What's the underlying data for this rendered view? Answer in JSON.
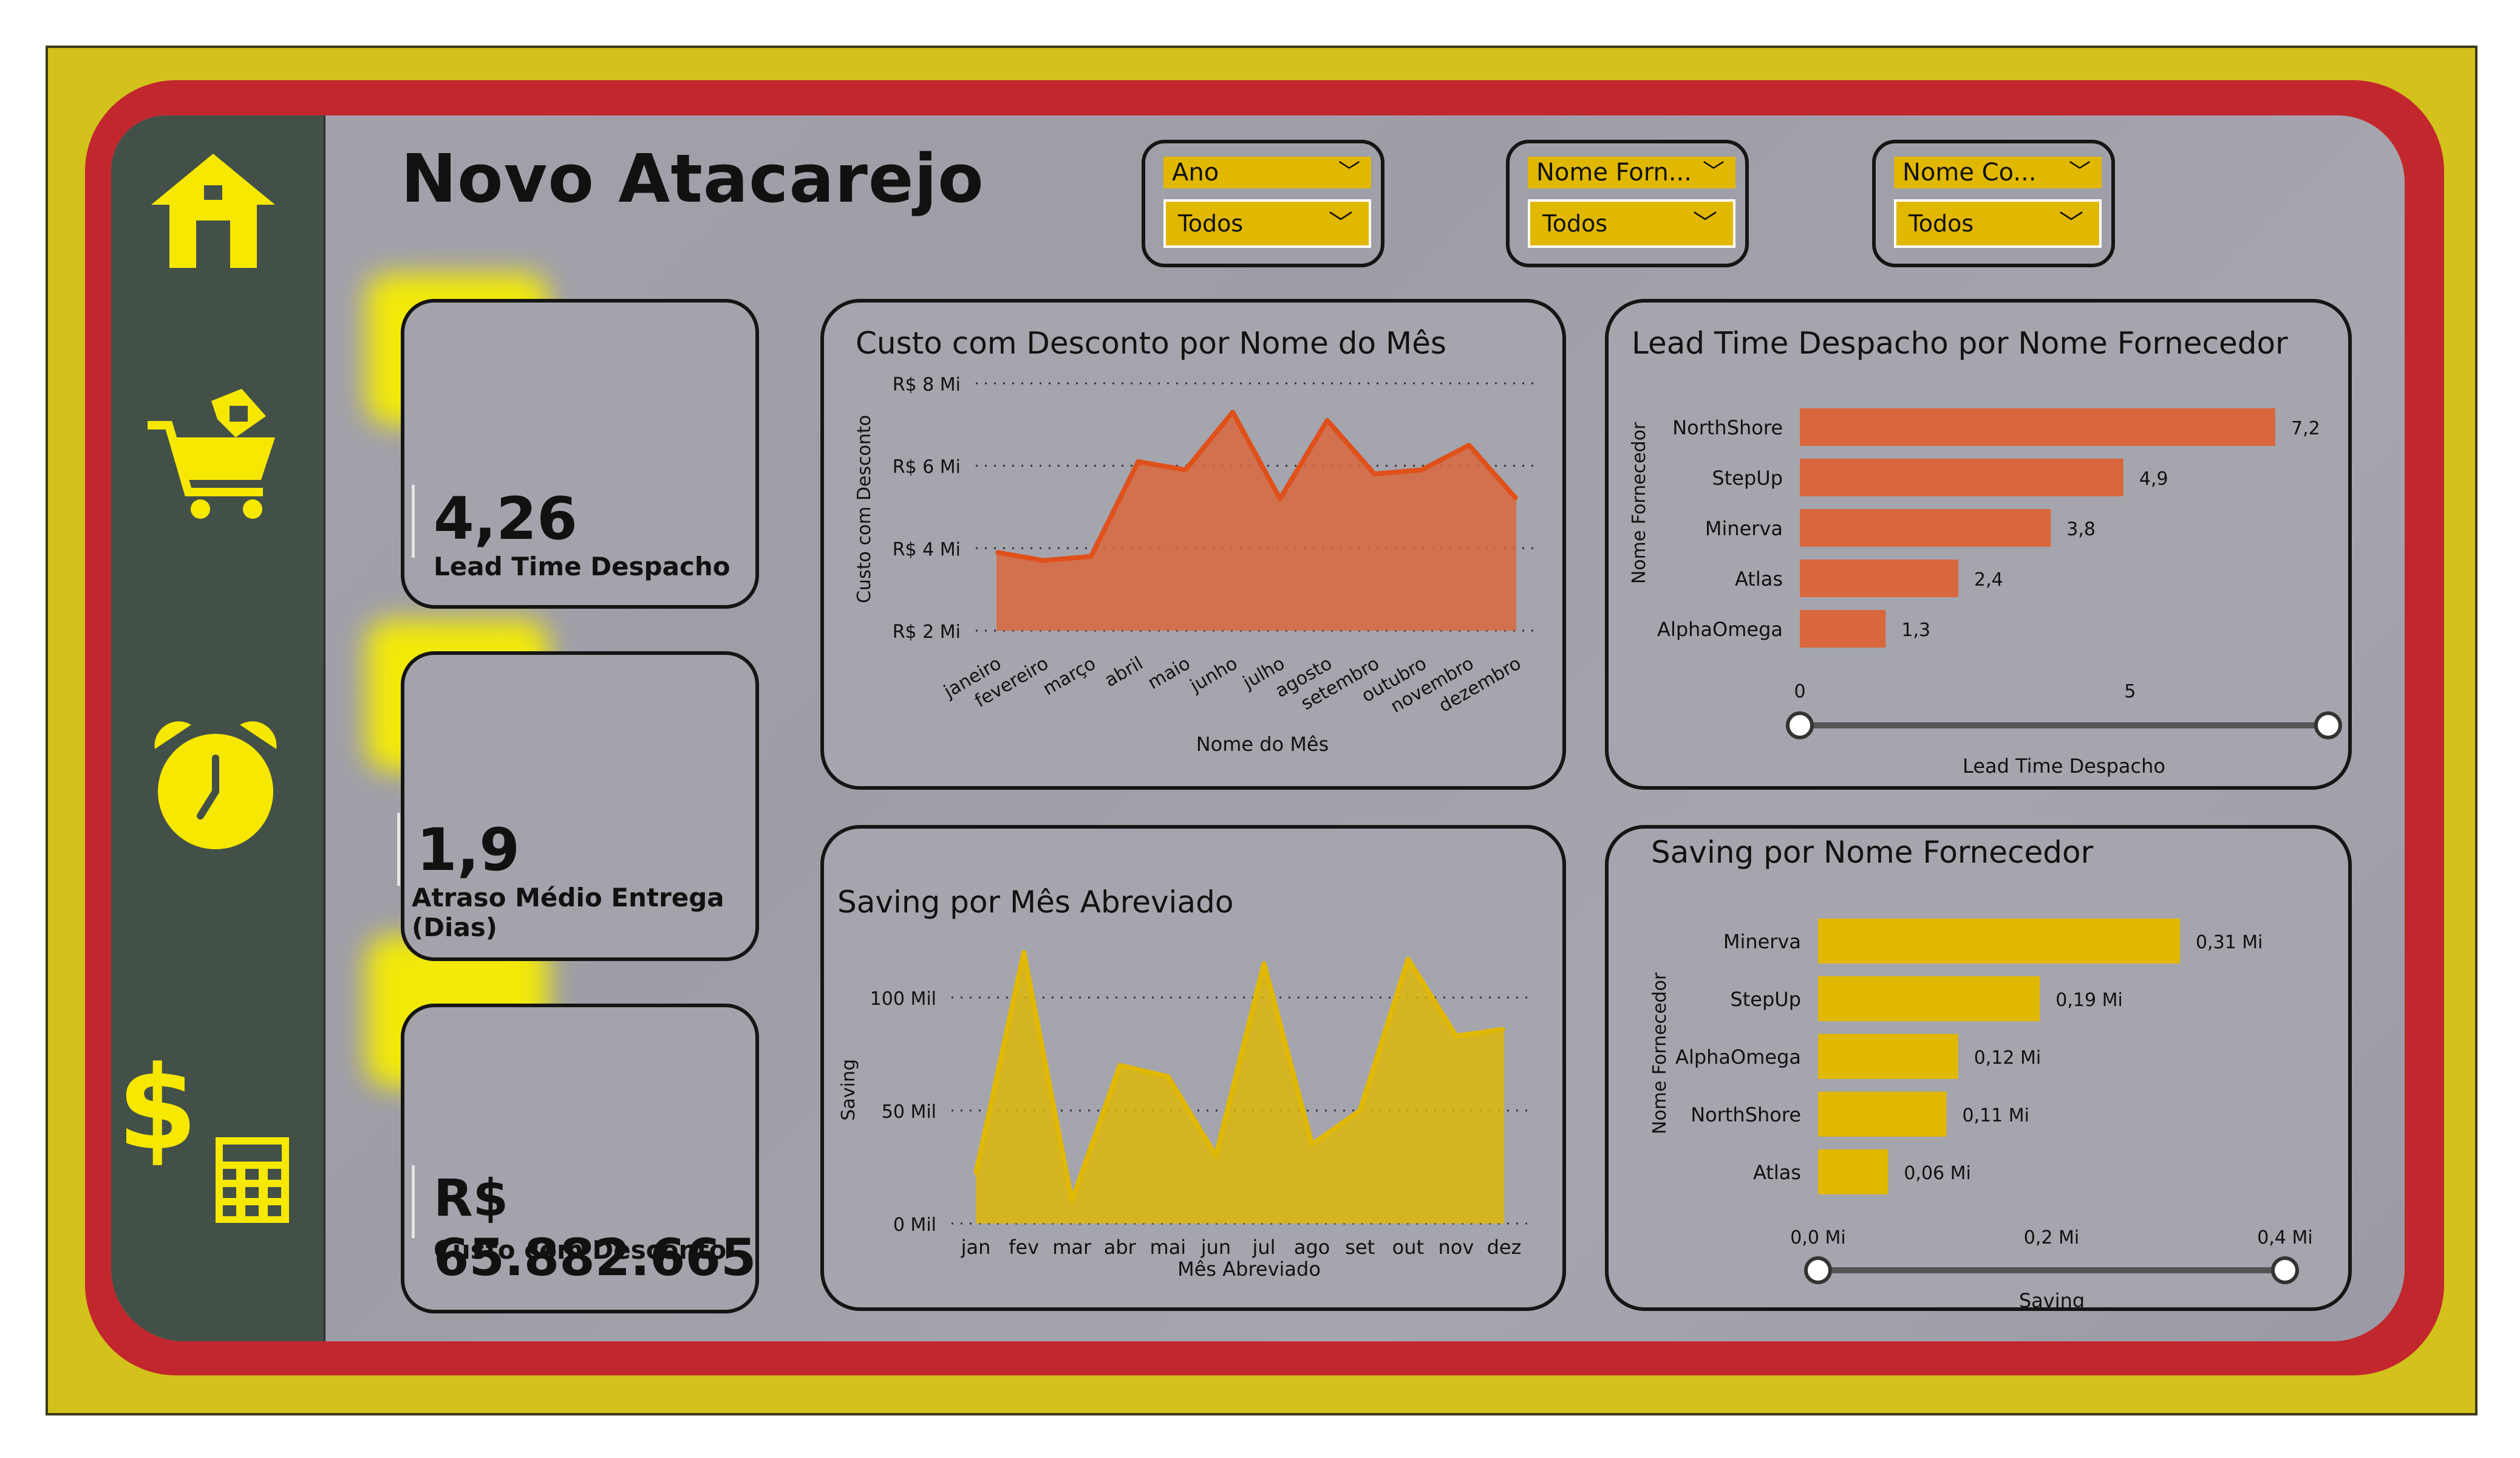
{
  "title": "Novo Atacarejo",
  "sidebar": {
    "items": [
      {
        "icon": "home-icon"
      },
      {
        "icon": "shopping-cart-icon"
      },
      {
        "icon": "alarm-clock-icon"
      },
      {
        "icon": "dollar-calculator-icon"
      }
    ]
  },
  "slicers": [
    {
      "header": "Ano",
      "value": "Todos"
    },
    {
      "header": "Nome Forn...",
      "value": "Todos"
    },
    {
      "header": "Nome Co...",
      "value": "Todos"
    }
  ],
  "kpis": [
    {
      "value": "4,26",
      "label": "Lead Time Despacho"
    },
    {
      "value": "1,9",
      "label": "Atraso Médio Entrega (Dias)"
    },
    {
      "value": "R$ 65.882.665",
      "label": "Custo com Desconto"
    }
  ],
  "colors": {
    "accent_yellow": "#e1b800",
    "orange": "#d9673e",
    "frame_red": "#c2272d",
    "frame_yellow": "#d2c21b",
    "sidebar": "#435048"
  },
  "chart_data": [
    {
      "type": "area",
      "title": "Custo com Desconto por Nome do Mês",
      "xlabel": "Nome do Mês",
      "ylabel": "Custo com Desconto",
      "categories": [
        "janeiro",
        "fevereiro",
        "março",
        "abril",
        "maio",
        "junho",
        "julho",
        "agosto",
        "setembro",
        "outubro",
        "novembro",
        "dezembro"
      ],
      "values": [
        3.9,
        3.7,
        3.8,
        6.1,
        5.9,
        7.3,
        5.2,
        7.1,
        5.8,
        5.9,
        6.5,
        5.2
      ],
      "ylim": [
        2,
        8
      ],
      "yticks": [
        "R$ 2 Mi",
        "R$ 4 Mi",
        "R$ 6 Mi",
        "R$ 8 Mi"
      ],
      "ytick_values": [
        2,
        4,
        6,
        8
      ],
      "grid": true
    },
    {
      "type": "bar",
      "orientation": "horizontal",
      "title": "Lead Time Despacho por Nome Fornecedor",
      "xlabel": "Lead Time Despacho",
      "ylabel": "Nome Fornecedor",
      "categories": [
        "NorthShore",
        "StepUp",
        "Minerva",
        "Atlas",
        "AlphaOmega"
      ],
      "values": [
        7.2,
        4.9,
        3.8,
        2.4,
        1.3
      ],
      "value_labels": [
        "7,2",
        "4,9",
        "3,8",
        "2,4",
        "1,3"
      ],
      "xlim": [
        0,
        8
      ],
      "xticks": [
        "0",
        "5"
      ],
      "xtick_values": [
        0,
        5
      ]
    },
    {
      "type": "area",
      "title": "Saving por Mês Abreviado",
      "xlabel": "Mês Abreviado",
      "ylabel": "Saving",
      "categories": [
        "jan",
        "fev",
        "mar",
        "abr",
        "mai",
        "jun",
        "jul",
        "ago",
        "set",
        "out",
        "nov",
        "dez"
      ],
      "values": [
        22,
        120,
        10,
        70,
        65,
        30,
        115,
        35,
        50,
        117,
        83,
        86
      ],
      "ylim": [
        0,
        125
      ],
      "yticks": [
        "0 Mil",
        "50 Mil",
        "100 Mil"
      ],
      "ytick_values": [
        0,
        50,
        100
      ],
      "grid": true
    },
    {
      "type": "bar",
      "orientation": "horizontal",
      "title": "Saving por Nome Fornecedor",
      "xlabel": "Saving",
      "ylabel": "Nome Fornecedor",
      "categories": [
        "Minerva",
        "StepUp",
        "AlphaOmega",
        "NorthShore",
        "Atlas"
      ],
      "values": [
        0.31,
        0.19,
        0.12,
        0.11,
        0.06
      ],
      "value_labels": [
        "0,31 Mi",
        "0,19 Mi",
        "0,12 Mi",
        "0,11 Mi",
        "0,06 Mi"
      ],
      "xlim": [
        0,
        0.4
      ],
      "xticks": [
        "0,0 Mi",
        "0,2 Mi",
        "0,4 Mi"
      ],
      "xtick_values": [
        0,
        0.2,
        0.4
      ]
    }
  ]
}
